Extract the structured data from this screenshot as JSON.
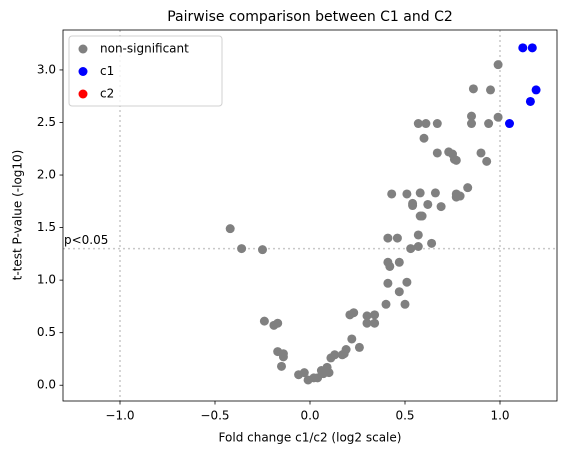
{
  "chart_data": {
    "type": "scatter",
    "title": "Pairwise comparison between C1 and C2",
    "xlabel": "Fold change c1/c2 (log2 scale)",
    "ylabel": "t-test P-value (-log10)",
    "xlim": [
      -1.3,
      1.3
    ],
    "ylim": [
      -0.15,
      3.38
    ],
    "xticks": [
      {
        "value": -1.0,
        "label": "−1.0"
      },
      {
        "value": -0.5,
        "label": "−0.5"
      },
      {
        "value": 0.0,
        "label": "0.0"
      },
      0.5,
      {
        "value": 1.0,
        "label": "1.0"
      }
    ],
    "yticks": [
      {
        "value": 0.0,
        "label": "0.0"
      },
      0.5,
      {
        "value": 1.0,
        "label": "1.0"
      },
      1.5,
      {
        "value": 2.0,
        "label": "2.0"
      },
      2.5,
      {
        "value": 3.0,
        "label": "3.0"
      }
    ],
    "hlines": [
      {
        "value": 1.3,
        "label": "p<0.05"
      }
    ],
    "vlines": [
      -1,
      1
    ],
    "legend": "upper left",
    "series": [
      {
        "name": "non-significant",
        "color": "#808080",
        "x": [
          -0.42,
          -0.36,
          -0.25,
          -0.24,
          -0.19,
          -0.17,
          -0.17,
          -0.14,
          -0.15,
          -0.14,
          -0.06,
          -0.03,
          -0.01,
          0.02,
          0.04,
          0.06,
          0.09,
          0.11,
          0.13,
          0.1,
          0.07,
          0.17,
          0.19,
          0.18,
          0.21,
          0.23,
          0.22,
          0.26,
          0.3,
          0.3,
          0.34,
          0.34,
          0.4,
          0.41,
          0.41,
          0.41,
          0.43,
          0.42,
          0.46,
          0.47,
          0.47,
          0.5,
          0.51,
          0.51,
          0.53,
          0.54,
          0.54,
          0.57,
          0.57,
          0.57,
          0.58,
          0.58,
          0.59,
          0.6,
          0.61,
          0.62,
          0.64,
          0.67,
          0.66,
          0.67,
          0.69,
          0.73,
          0.75,
          0.76,
          0.77,
          0.77,
          0.77,
          0.79,
          0.83,
          0.85,
          0.85,
          0.86,
          0.9,
          0.93,
          0.94,
          0.95,
          0.99,
          0.99
        ],
        "values": [
          1.49,
          1.3,
          1.29,
          0.61,
          0.57,
          0.59,
          0.32,
          0.3,
          0.18,
          0.27,
          0.1,
          0.12,
          0.05,
          0.07,
          0.07,
          0.14,
          0.17,
          0.26,
          0.29,
          0.12,
          0.11,
          0.29,
          0.34,
          0.3,
          0.67,
          0.69,
          0.44,
          0.36,
          0.66,
          0.59,
          0.59,
          0.67,
          0.77,
          0.97,
          1.17,
          1.4,
          1.82,
          1.13,
          1.4,
          1.17,
          0.89,
          0.77,
          0.98,
          1.82,
          1.3,
          1.73,
          1.71,
          1.43,
          1.32,
          2.49,
          1.83,
          1.61,
          1.61,
          2.35,
          2.49,
          1.72,
          1.35,
          2.49,
          1.83,
          2.21,
          1.7,
          2.22,
          2.2,
          2.15,
          2.14,
          1.82,
          1.79,
          1.8,
          1.88,
          2.49,
          2.56,
          2.82,
          2.21,
          2.13,
          2.49,
          2.81,
          2.55,
          3.05
        ]
      },
      {
        "name": "c1",
        "color": "#0000ff",
        "x": [
          1.05,
          1.12,
          1.17,
          1.16,
          1.19
        ],
        "values": [
          2.49,
          3.21,
          3.21,
          2.7,
          2.81
        ]
      },
      {
        "name": "c2",
        "color": "#ff0000",
        "x": [],
        "values": []
      }
    ]
  }
}
